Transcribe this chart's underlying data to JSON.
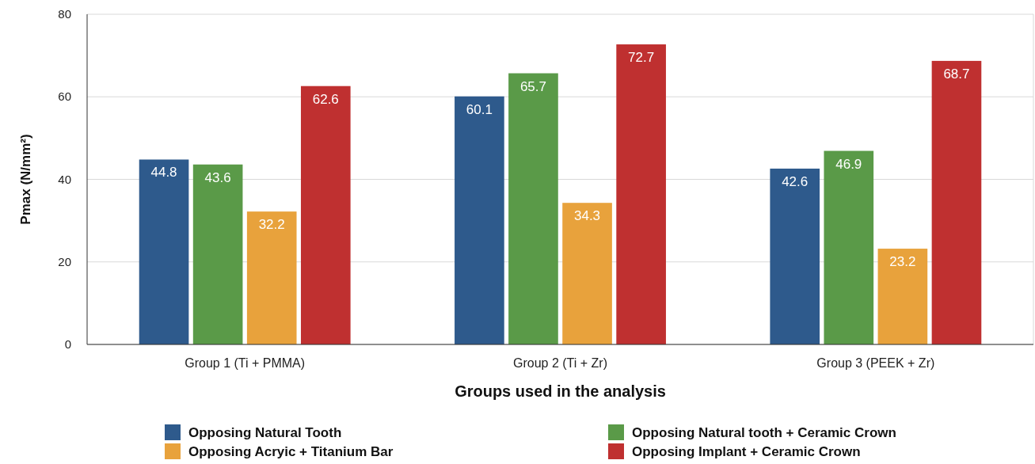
{
  "chart_data": {
    "type": "bar",
    "xlabel": "Groups used in the analysis",
    "ylabel": "Pmax (N/mm²)",
    "categories": [
      "Group 1 (Ti + PMMA)",
      "Group 2 (Ti + Zr)",
      "Group 3 (PEEK + Zr)"
    ],
    "series": [
      {
        "name": "Opposing Natural Tooth",
        "color": "#2e5a8c",
        "values": [
          44.8,
          60.1,
          42.6
        ]
      },
      {
        "name": "Opposing Natural tooth + Ceramic Crown",
        "color": "#5a9a48",
        "values": [
          43.6,
          65.7,
          46.9
        ]
      },
      {
        "name": "Opposing Acryic + Titanium Bar",
        "color": "#e8a23c",
        "values": [
          32.2,
          34.3,
          23.2
        ]
      },
      {
        "name": "Opposing Implant + Ceramic Crown",
        "color": "#bf3030",
        "values": [
          62.6,
          72.7,
          68.7
        ]
      }
    ],
    "ylim": [
      0,
      80
    ],
    "yticks": [
      0,
      20,
      40,
      60,
      80
    ],
    "grid": "y",
    "legend": "bottom",
    "data_labels": true
  }
}
